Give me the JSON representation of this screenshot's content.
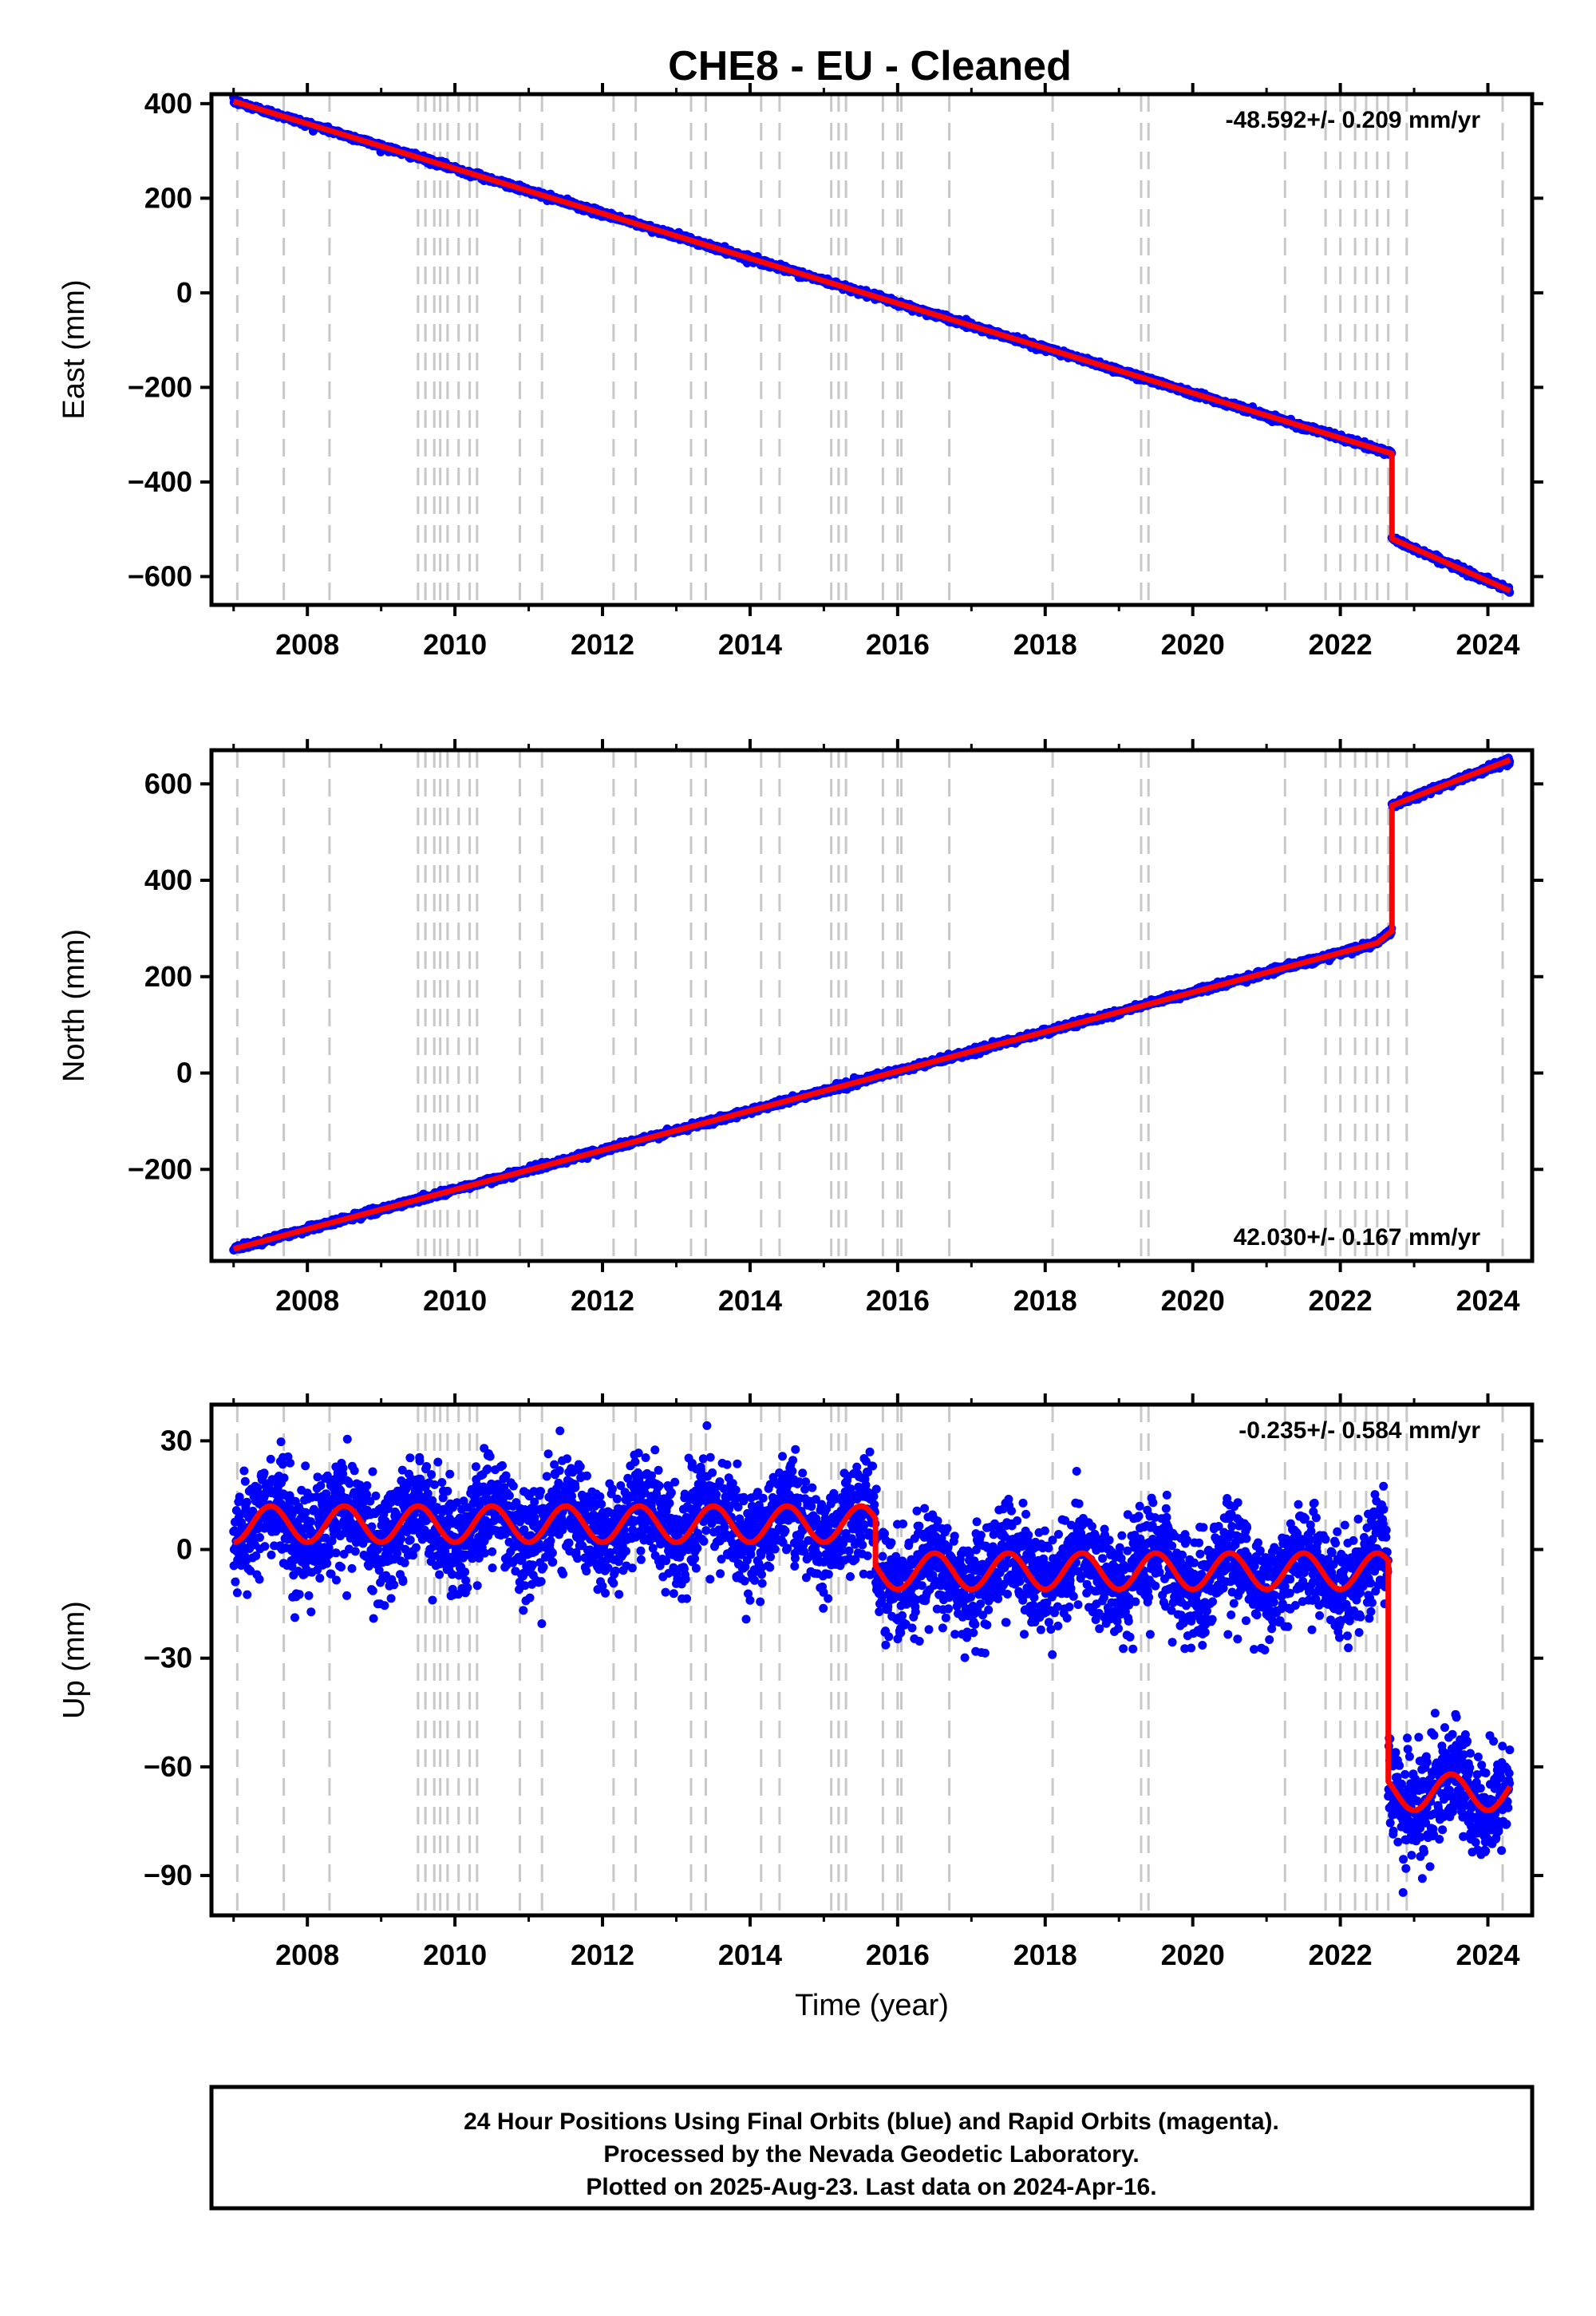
{
  "title": "CHE8  - EU - Cleaned",
  "colors": {
    "final_orbits": "#0000ff",
    "model": "#ff0000",
    "events": "#c8c8c8",
    "frame": "#000000"
  },
  "footer": {
    "line1": "24 Hour Positions Using Final Orbits (blue) and Rapid Orbits (magenta).",
    "line2": "Processed by the Nevada Geodetic Laboratory.",
    "line3": "Plotted on 2025-Aug-23. Last data on 2024-Apr-16."
  },
  "chart_data": [
    {
      "type": "scatter",
      "name": "east",
      "ylabel": "East (mm)",
      "xlabel": "",
      "xlim": [
        2006.7,
        2024.6
      ],
      "ylim": [
        -660,
        420
      ],
      "yticks": [
        -600,
        -400,
        -200,
        0,
        200,
        400
      ],
      "ytick_labels": [
        "−600",
        "−400",
        "−200",
        "0",
        "200",
        "400"
      ],
      "xticks": [
        2008,
        2010,
        2012,
        2014,
        2016,
        2018,
        2020,
        2022,
        2024
      ],
      "xtick_labels": [
        "2008",
        "2010",
        "2012",
        "2014",
        "2016",
        "2018",
        "2020",
        "2022",
        "2024"
      ],
      "rate_label": "-48.592+/- 0.209 mm/yr",
      "rate_position": "top-right",
      "series": [
        {
          "name": "",
          "role": "model",
          "segments": [
            {
              "x": [
                2007.0,
                2022.7
              ],
              "y": [
                405,
                -340
              ]
            },
            {
              "x": [
                2022.7,
                2022.7
              ],
              "y": [
                -340,
                -520
              ]
            },
            {
              "x": [
                2022.7,
                2024.3
              ],
              "y": [
                -520,
                -630
              ]
            }
          ],
          "scatter_std": 3.0
        }
      ]
    },
    {
      "type": "scatter",
      "name": "north",
      "ylabel": "North (mm)",
      "xlabel": "",
      "xlim": [
        2006.7,
        2024.6
      ],
      "ylim": [
        -390,
        670
      ],
      "yticks": [
        -200,
        0,
        200,
        400,
        600
      ],
      "ytick_labels": [
        "−200",
        "0",
        "200",
        "400",
        "600"
      ],
      "xticks": [
        2008,
        2010,
        2012,
        2014,
        2016,
        2018,
        2020,
        2022,
        2024
      ],
      "xtick_labels": [
        "2008",
        "2010",
        "2012",
        "2014",
        "2016",
        "2018",
        "2020",
        "2022",
        "2024"
      ],
      "rate_label": "42.030+/- 0.167 mm/yr",
      "rate_position": "bottom-right",
      "series": [
        {
          "name": "",
          "role": "model",
          "segments": [
            {
              "x": [
                2007.0,
                2022.5,
                2022.7
              ],
              "y": [
                -365,
                270,
                295
              ]
            },
            {
              "x": [
                2022.7,
                2022.7
              ],
              "y": [
                295,
                555
              ]
            },
            {
              "x": [
                2022.7,
                2023.2,
                2024.3
              ],
              "y": [
                555,
                585,
                650
              ]
            }
          ],
          "scatter_std": 3.0
        }
      ]
    },
    {
      "type": "scatter",
      "name": "up",
      "ylabel": "Up (mm)",
      "xlabel": "Time (year)",
      "xlim": [
        2006.7,
        2024.6
      ],
      "ylim": [
        -101,
        40
      ],
      "yticks": [
        -90,
        -60,
        -30,
        0,
        30
      ],
      "ytick_labels": [
        "−90",
        "−60",
        "−30",
        "0",
        "30"
      ],
      "xticks": [
        2008,
        2010,
        2012,
        2014,
        2016,
        2018,
        2020,
        2022,
        2024
      ],
      "xtick_labels": [
        "2008",
        "2010",
        "2012",
        "2014",
        "2016",
        "2018",
        "2020",
        "2022",
        "2024"
      ],
      "rate_label": "-0.235+/- 0.584 mm/yr",
      "rate_position": "top-right",
      "series": [
        {
          "name": "",
          "role": "model",
          "segments": [
            {
              "x": [
                2007.0,
                2015.7
              ],
              "base": 7,
              "slope": 0,
              "amp": 5
            },
            {
              "x": [
                2015.7,
                2022.65
              ],
              "base": -6,
              "slope": 0,
              "amp": 5
            },
            {
              "x": [
                2022.65,
                2024.3
              ],
              "base": -67,
              "slope": 0,
              "amp": 5
            }
          ],
          "scatter_std": 7.0
        }
      ]
    }
  ],
  "event_lines": [
    2007.05,
    2007.68,
    2008.3,
    2009.5,
    2009.6,
    2009.72,
    2009.8,
    2009.9,
    2010.05,
    2010.2,
    2010.3,
    2010.88,
    2011.18,
    2012.15,
    2012.45,
    2013.2,
    2013.4,
    2014.15,
    2014.4,
    2015.1,
    2015.2,
    2015.3,
    2015.8,
    2016.0,
    2016.05,
    2016.7,
    2018.1,
    2019.3,
    2019.4,
    2021.25,
    2021.8,
    2022.0,
    2022.2,
    2022.35,
    2022.5,
    2022.65,
    2022.9,
    2024.2
  ]
}
